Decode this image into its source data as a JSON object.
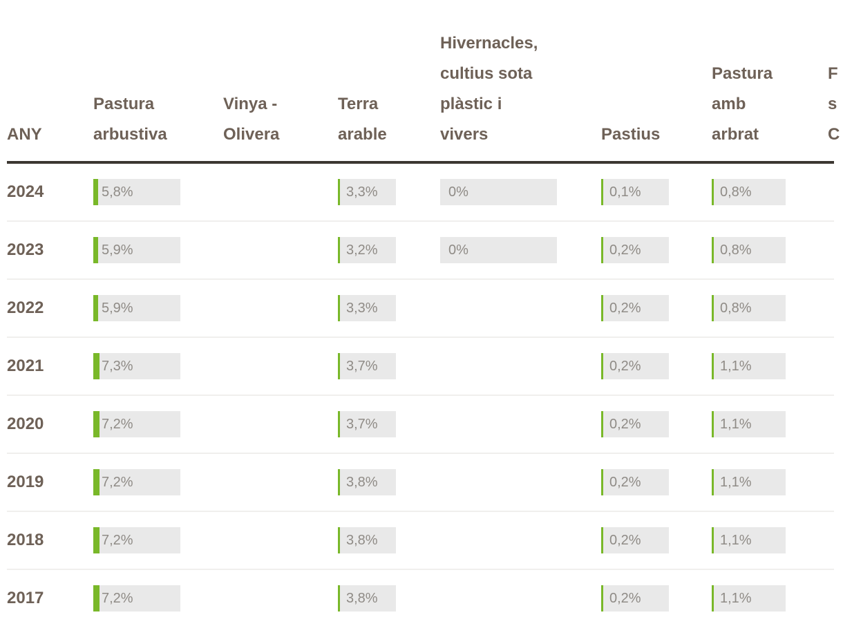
{
  "accent_color": "#79b829",
  "bar_background_color": "#e9e9e9",
  "header_text_color": "#6e6157",
  "value_text_color": "#8f8b86",
  "table": {
    "columns": [
      {
        "id": "any",
        "label": "ANY"
      },
      {
        "id": "pastura_arbustiva",
        "label": "Pastura\narbustiva"
      },
      {
        "id": "vinya_olivera",
        "label": "Vinya -\nOlivera"
      },
      {
        "id": "terra_arable",
        "label": "Terra\narable"
      },
      {
        "id": "hivernacles",
        "label": "Hivernacles,\ncultius sota\nplàstic i\nvivers"
      },
      {
        "id": "pastius",
        "label": "Pastius"
      },
      {
        "id": "pastura_amb_arbrat",
        "label": "Pastura\namb\narbrat"
      },
      {
        "id": "clipped",
        "label": "F\ns\nC",
        "truncated": true
      }
    ],
    "rows": [
      {
        "year": "2024",
        "cells": {
          "pastura_arbustiva": {
            "text": "5,8%",
            "value": 5.8
          },
          "vinya_olivera": null,
          "terra_arable": {
            "text": "3,3%",
            "value": 3.3
          },
          "hivernacles": {
            "text": "0%",
            "value": 0
          },
          "pastius": {
            "text": "0,1%",
            "value": 0.1
          },
          "pastura_amb_arbrat": {
            "text": "0,8%",
            "value": 0.8
          }
        }
      },
      {
        "year": "2023",
        "cells": {
          "pastura_arbustiva": {
            "text": "5,9%",
            "value": 5.9
          },
          "vinya_olivera": null,
          "terra_arable": {
            "text": "3,2%",
            "value": 3.2
          },
          "hivernacles": {
            "text": "0%",
            "value": 0
          },
          "pastius": {
            "text": "0,2%",
            "value": 0.2
          },
          "pastura_amb_arbrat": {
            "text": "0,8%",
            "value": 0.8
          }
        }
      },
      {
        "year": "2022",
        "cells": {
          "pastura_arbustiva": {
            "text": "5,9%",
            "value": 5.9
          },
          "vinya_olivera": null,
          "terra_arable": {
            "text": "3,3%",
            "value": 3.3
          },
          "hivernacles": null,
          "pastius": {
            "text": "0,2%",
            "value": 0.2
          },
          "pastura_amb_arbrat": {
            "text": "0,8%",
            "value": 0.8
          }
        }
      },
      {
        "year": "2021",
        "cells": {
          "pastura_arbustiva": {
            "text": "7,3%",
            "value": 7.3
          },
          "vinya_olivera": null,
          "terra_arable": {
            "text": "3,7%",
            "value": 3.7
          },
          "hivernacles": null,
          "pastius": {
            "text": "0,2%",
            "value": 0.2
          },
          "pastura_amb_arbrat": {
            "text": "1,1%",
            "value": 1.1
          }
        }
      },
      {
        "year": "2020",
        "cells": {
          "pastura_arbustiva": {
            "text": "7,2%",
            "value": 7.2
          },
          "vinya_olivera": null,
          "terra_arable": {
            "text": "3,7%",
            "value": 3.7
          },
          "hivernacles": null,
          "pastius": {
            "text": "0,2%",
            "value": 0.2
          },
          "pastura_amb_arbrat": {
            "text": "1,1%",
            "value": 1.1
          }
        }
      },
      {
        "year": "2019",
        "cells": {
          "pastura_arbustiva": {
            "text": "7,2%",
            "value": 7.2
          },
          "vinya_olivera": null,
          "terra_arable": {
            "text": "3,8%",
            "value": 3.8
          },
          "hivernacles": null,
          "pastius": {
            "text": "0,2%",
            "value": 0.2
          },
          "pastura_amb_arbrat": {
            "text": "1,1%",
            "value": 1.1
          }
        }
      },
      {
        "year": "2018",
        "cells": {
          "pastura_arbustiva": {
            "text": "7,2%",
            "value": 7.2
          },
          "vinya_olivera": null,
          "terra_arable": {
            "text": "3,8%",
            "value": 3.8
          },
          "hivernacles": null,
          "pastius": {
            "text": "0,2%",
            "value": 0.2
          },
          "pastura_amb_arbrat": {
            "text": "1,1%",
            "value": 1.1
          }
        }
      },
      {
        "year": "2017",
        "cells": {
          "pastura_arbustiva": {
            "text": "7,2%",
            "value": 7.2
          },
          "vinya_olivera": null,
          "terra_arable": {
            "text": "3,8%",
            "value": 3.8
          },
          "hivernacles": null,
          "pastius": {
            "text": "0,2%",
            "value": 0.2
          },
          "pastura_amb_arbrat": {
            "text": "1,1%",
            "value": 1.1
          }
        }
      }
    ]
  },
  "chart_data": {
    "type": "table",
    "title": "",
    "unit": "%",
    "categories_label": "ANY",
    "categories": [
      2024,
      2023,
      2022,
      2021,
      2020,
      2019,
      2018,
      2017
    ],
    "series": [
      {
        "name": "Pastura arbustiva",
        "values": [
          5.8,
          5.9,
          5.9,
          7.3,
          7.2,
          7.2,
          7.2,
          7.2
        ]
      },
      {
        "name": "Vinya - Olivera",
        "values": [
          null,
          null,
          null,
          null,
          null,
          null,
          null,
          null
        ]
      },
      {
        "name": "Terra arable",
        "values": [
          3.3,
          3.2,
          3.3,
          3.7,
          3.7,
          3.8,
          3.8,
          3.8
        ]
      },
      {
        "name": "Hivernacles, cultius sota plàstic i vivers",
        "values": [
          0,
          0,
          null,
          null,
          null,
          null,
          null,
          null
        ]
      },
      {
        "name": "Pastius",
        "values": [
          0.1,
          0.2,
          0.2,
          0.2,
          0.2,
          0.2,
          0.2,
          0.2
        ]
      },
      {
        "name": "Pastura amb arbrat",
        "values": [
          0.8,
          0.8,
          0.8,
          1.1,
          1.1,
          1.1,
          1.1,
          1.1
        ]
      }
    ],
    "layout_hints": {
      "cell_bars": true,
      "bar_scale_percent_of_cell_width": 100,
      "bar_color": "#79b829",
      "grid": "row-dividers-only",
      "legend": "none"
    }
  }
}
